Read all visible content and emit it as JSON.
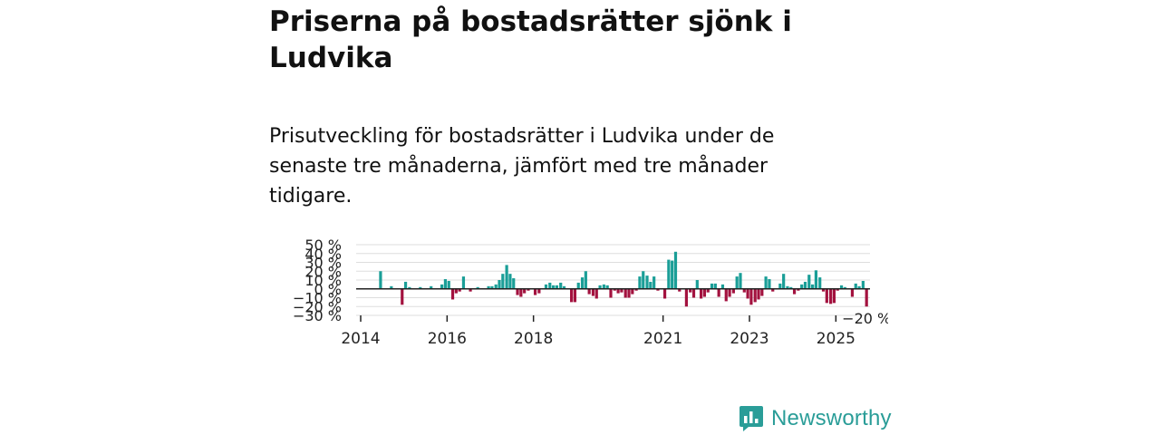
{
  "header": {
    "title": "Priserna på bostadsrätter sjönk i Ludvika",
    "subtitle": "Prisutveckling för bostadsrätter i Ludvika under de senaste tre månaderna, jämfört med tre månader tidigare."
  },
  "brand": {
    "name": "Newsworthy"
  },
  "colors": {
    "positive": "#1a9e97",
    "negative": "#a3123f",
    "grid": "#dddddd",
    "zero": "#222222"
  },
  "chart_data": {
    "type": "bar",
    "title": "Priserna på bostadsrätter sjönk i Ludvika",
    "ylabel": "",
    "xlabel": "",
    "ylim": [
      -30,
      50
    ],
    "xlim": [
      2014.0,
      2026.0
    ],
    "y_ticks": [
      -30,
      -20,
      -10,
      0,
      10,
      20,
      30,
      40,
      50
    ],
    "y_tick_labels": [
      "−30 %",
      "−20 %",
      "−10 %",
      "0 %",
      "10 %",
      "20 %",
      "30 %",
      "40 %",
      "50 %"
    ],
    "x_ticks": [
      2014,
      2016,
      2018,
      2021,
      2023,
      2025
    ],
    "x_tick_labels": [
      "2014",
      "2016",
      "2018",
      "2021",
      "2023",
      "2025"
    ],
    "last_value_label": "−20 %",
    "series": [
      {
        "name": "Prisutveckling",
        "points": [
          {
            "x": 2014.46,
            "y": 20
          },
          {
            "x": 2014.71,
            "y": 3
          },
          {
            "x": 2014.96,
            "y": -18
          },
          {
            "x": 2015.04,
            "y": 8
          },
          {
            "x": 2015.13,
            "y": 2
          },
          {
            "x": 2015.38,
            "y": 2
          },
          {
            "x": 2015.63,
            "y": 3
          },
          {
            "x": 2015.88,
            "y": 5
          },
          {
            "x": 2015.96,
            "y": 11
          },
          {
            "x": 2016.04,
            "y": 9
          },
          {
            "x": 2016.13,
            "y": -12
          },
          {
            "x": 2016.21,
            "y": -5
          },
          {
            "x": 2016.29,
            "y": -3
          },
          {
            "x": 2016.38,
            "y": 14
          },
          {
            "x": 2016.54,
            "y": -3
          },
          {
            "x": 2016.71,
            "y": 2
          },
          {
            "x": 2016.96,
            "y": 3
          },
          {
            "x": 2017.04,
            "y": 3
          },
          {
            "x": 2017.13,
            "y": 5
          },
          {
            "x": 2017.21,
            "y": 10
          },
          {
            "x": 2017.29,
            "y": 17
          },
          {
            "x": 2017.38,
            "y": 27
          },
          {
            "x": 2017.46,
            "y": 17
          },
          {
            "x": 2017.54,
            "y": 12
          },
          {
            "x": 2017.63,
            "y": -7
          },
          {
            "x": 2017.71,
            "y": -9
          },
          {
            "x": 2017.79,
            "y": -5
          },
          {
            "x": 2017.88,
            "y": -2
          },
          {
            "x": 2018.04,
            "y": -7
          },
          {
            "x": 2018.13,
            "y": -5
          },
          {
            "x": 2018.29,
            "y": 5
          },
          {
            "x": 2018.38,
            "y": 7
          },
          {
            "x": 2018.46,
            "y": 4
          },
          {
            "x": 2018.54,
            "y": 4
          },
          {
            "x": 2018.63,
            "y": 7
          },
          {
            "x": 2018.71,
            "y": 3
          },
          {
            "x": 2018.88,
            "y": -15
          },
          {
            "x": 2018.96,
            "y": -15
          },
          {
            "x": 2019.04,
            "y": 7
          },
          {
            "x": 2019.13,
            "y": 13
          },
          {
            "x": 2019.21,
            "y": 20
          },
          {
            "x": 2019.29,
            "y": -6
          },
          {
            "x": 2019.38,
            "y": -8
          },
          {
            "x": 2019.46,
            "y": -11
          },
          {
            "x": 2019.54,
            "y": 4
          },
          {
            "x": 2019.63,
            "y": 5
          },
          {
            "x": 2019.71,
            "y": 4
          },
          {
            "x": 2019.79,
            "y": -10
          },
          {
            "x": 2019.88,
            "y": -2
          },
          {
            "x": 2019.96,
            "y": -5
          },
          {
            "x": 2020.04,
            "y": -4
          },
          {
            "x": 2020.13,
            "y": -10
          },
          {
            "x": 2020.21,
            "y": -10
          },
          {
            "x": 2020.29,
            "y": -6
          },
          {
            "x": 2020.38,
            "y": -2
          },
          {
            "x": 2020.46,
            "y": 14
          },
          {
            "x": 2020.54,
            "y": 20
          },
          {
            "x": 2020.63,
            "y": 15
          },
          {
            "x": 2020.71,
            "y": 8
          },
          {
            "x": 2020.79,
            "y": 14
          },
          {
            "x": 2020.88,
            "y": -2
          },
          {
            "x": 2021.04,
            "y": -11
          },
          {
            "x": 2021.13,
            "y": 33
          },
          {
            "x": 2021.21,
            "y": 32
          },
          {
            "x": 2021.29,
            "y": 42
          },
          {
            "x": 2021.38,
            "y": -3
          },
          {
            "x": 2021.54,
            "y": -20
          },
          {
            "x": 2021.63,
            "y": -4
          },
          {
            "x": 2021.71,
            "y": -10
          },
          {
            "x": 2021.79,
            "y": 10
          },
          {
            "x": 2021.88,
            "y": -11
          },
          {
            "x": 2021.96,
            "y": -9
          },
          {
            "x": 2022.04,
            "y": -4
          },
          {
            "x": 2022.13,
            "y": 6
          },
          {
            "x": 2022.21,
            "y": 6
          },
          {
            "x": 2022.29,
            "y": -9
          },
          {
            "x": 2022.38,
            "y": 5
          },
          {
            "x": 2022.46,
            "y": -14
          },
          {
            "x": 2022.54,
            "y": -9
          },
          {
            "x": 2022.63,
            "y": -5
          },
          {
            "x": 2022.71,
            "y": 14
          },
          {
            "x": 2022.79,
            "y": 18
          },
          {
            "x": 2022.88,
            "y": -4
          },
          {
            "x": 2022.96,
            "y": -11
          },
          {
            "x": 2023.04,
            "y": -18
          },
          {
            "x": 2023.13,
            "y": -15
          },
          {
            "x": 2023.21,
            "y": -12
          },
          {
            "x": 2023.29,
            "y": -8
          },
          {
            "x": 2023.38,
            "y": 14
          },
          {
            "x": 2023.46,
            "y": 11
          },
          {
            "x": 2023.54,
            "y": -3
          },
          {
            "x": 2023.71,
            "y": 6
          },
          {
            "x": 2023.79,
            "y": 17
          },
          {
            "x": 2023.88,
            "y": 3
          },
          {
            "x": 2023.96,
            "y": 2
          },
          {
            "x": 2024.04,
            "y": -6
          },
          {
            "x": 2024.13,
            "y": -2
          },
          {
            "x": 2024.21,
            "y": 5
          },
          {
            "x": 2024.29,
            "y": 8
          },
          {
            "x": 2024.38,
            "y": 16
          },
          {
            "x": 2024.46,
            "y": 5
          },
          {
            "x": 2024.54,
            "y": 21
          },
          {
            "x": 2024.63,
            "y": 13
          },
          {
            "x": 2024.71,
            "y": -3
          },
          {
            "x": 2024.79,
            "y": -16
          },
          {
            "x": 2024.88,
            "y": -17
          },
          {
            "x": 2024.96,
            "y": -16
          },
          {
            "x": 2025.04,
            "y": -2
          },
          {
            "x": 2025.13,
            "y": 4
          },
          {
            "x": 2025.21,
            "y": 2
          },
          {
            "x": 2025.38,
            "y": -9
          },
          {
            "x": 2025.46,
            "y": 6
          },
          {
            "x": 2025.54,
            "y": 3
          },
          {
            "x": 2025.63,
            "y": 9
          },
          {
            "x": 2025.71,
            "y": -20
          }
        ]
      }
    ]
  }
}
